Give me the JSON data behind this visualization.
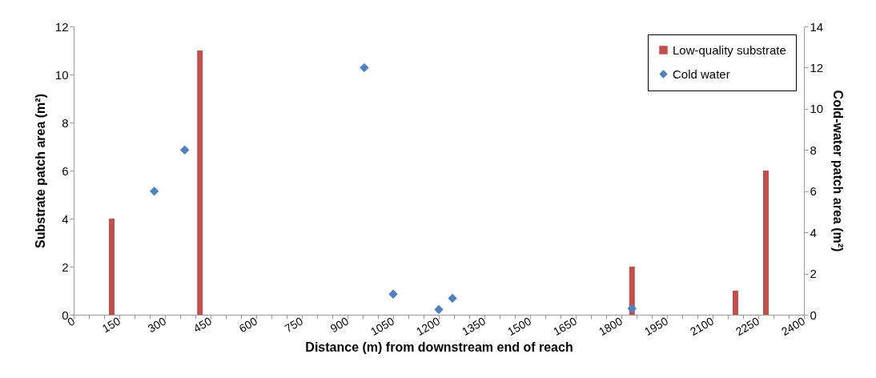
{
  "chart_data": {
    "type": "bar",
    "xlabel": "Distance (m) from downstream end of reach",
    "ylabel": "Substrate patch area (m²)",
    "y2label": "Cold-water patch area (m²)",
    "xlim": [
      0,
      2400
    ],
    "xticks": [
      0,
      {
        "value": 50,
        "label": null
      },
      {
        "value": 100,
        "label": null
      },
      150,
      {
        "value": 200,
        "label": null
      },
      {
        "value": 250,
        "label": null
      },
      300,
      {
        "value": 350,
        "label": null
      },
      {
        "value": 400,
        "label": null
      },
      450,
      {
        "value": 500,
        "label": null
      },
      {
        "value": 550,
        "label": null
      },
      600,
      {
        "value": 650,
        "label": null
      },
      {
        "value": 700,
        "label": null
      },
      750,
      {
        "value": 800,
        "label": null
      },
      {
        "value": 850,
        "label": null
      },
      900,
      {
        "value": 950,
        "label": null
      },
      {
        "value": 1000,
        "label": null
      },
      1050,
      {
        "value": 1100,
        "label": null
      },
      {
        "value": 1150,
        "label": null
      },
      1200,
      {
        "value": 1250,
        "label": null
      },
      {
        "value": 1300,
        "label": null
      },
      1350,
      {
        "value": 1400,
        "label": null
      },
      {
        "value": 1450,
        "label": null
      },
      1500,
      {
        "value": 1550,
        "label": null
      },
      {
        "value": 1600,
        "label": null
      },
      1650,
      {
        "value": 1700,
        "label": null
      },
      {
        "value": 1750,
        "label": null
      },
      1800,
      {
        "value": 1850,
        "label": null
      },
      {
        "value": 1900,
        "label": null
      },
      1950,
      {
        "value": 2000,
        "label": null
      },
      {
        "value": 2050,
        "label": null
      },
      2100,
      {
        "value": 2150,
        "label": null
      },
      {
        "value": 2200,
        "label": null
      },
      2250,
      {
        "value": 2300,
        "label": null
      },
      {
        "value": 2350,
        "label": null
      },
      2400
    ],
    "ylim": [
      0,
      12
    ],
    "yticks": [
      0,
      2,
      4,
      6,
      8,
      10,
      12
    ],
    "y2lim": [
      0,
      14
    ],
    "y2ticks": [
      0,
      2,
      4,
      6,
      8,
      10,
      12,
      14
    ],
    "grid": false,
    "legend": "top right",
    "series": [
      {
        "name": "Low-quality substrate",
        "color": "#c0504d",
        "x": [
          125,
          415,
          1835,
          2175,
          2275
        ],
        "values": [
          4,
          11,
          2,
          1,
          6
        ]
      },
      {
        "name": "Cold water",
        "type": "scatter",
        "axis": "y2",
        "marker": "diamond",
        "color": "#4f81bd",
        "x": [
          265,
          365,
          955,
          1050,
          1200,
          1245,
          1835
        ],
        "values": [
          6,
          8,
          12,
          1,
          0.25,
          0.8,
          0.3
        ]
      }
    ]
  }
}
